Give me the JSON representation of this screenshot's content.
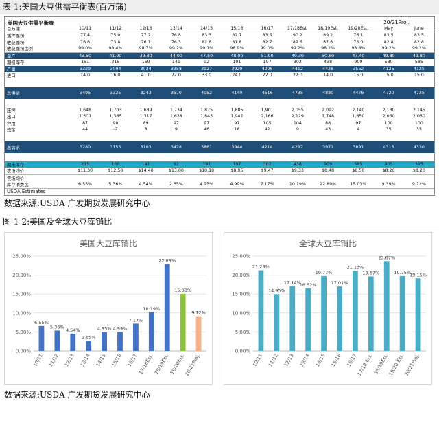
{
  "table_caption": "表 1:美国大豆供需平衡表(百万蒲)",
  "table": {
    "title": "美国大豆供需平衡表",
    "unit": "百万蒲",
    "proj_label": "20/21Proj.",
    "columns": [
      "10/11",
      "11/12",
      "12/13",
      "13/14",
      "14/15",
      "15/16",
      "16/17",
      "17/18Est.",
      "18/19Est.",
      "19/20Est.",
      "May",
      "June"
    ],
    "rows": [
      {
        "label": "播种面积",
        "style": "",
        "values": [
          "77.4",
          "75.0",
          "77.2",
          "76.8",
          "83.3",
          "82.7",
          "83.5",
          "90.2",
          "89.2",
          "76.1",
          "83.5",
          "83.5"
        ]
      },
      {
        "label": "收获面积",
        "style": "",
        "values": [
          "76.6",
          "73.8",
          "76.1",
          "76.3",
          "82.6",
          "81.8",
          "82.7",
          "89.5",
          "87.6",
          "75.0",
          "82.8",
          "82.8"
        ]
      },
      {
        "label": "收获面积比例",
        "style": "line",
        "values": [
          "99.0%",
          "98.4%",
          "98.7%",
          "99.2%",
          "99.1%",
          "98.9%",
          "99.0%",
          "99.2%",
          "98.2%",
          "98.6%",
          "99.2%",
          "99.2%"
        ]
      },
      {
        "label": "单产",
        "style": "blue",
        "values": [
          "43.50",
          "41.90",
          "39.80",
          "44.00",
          "47.50",
          "48.00",
          "51.90",
          "49.30",
          "50.60",
          "47.40",
          "49.80",
          "49.80"
        ]
      },
      {
        "label": "期初库存",
        "style": "",
        "values": [
          "151",
          "215",
          "169",
          "141",
          "92",
          "191",
          "197",
          "302",
          "438",
          "909",
          "580",
          "585"
        ]
      },
      {
        "label": "产量",
        "style": "blue",
        "values": [
          "3329",
          "3094",
          "3034",
          "3358",
          "3927",
          "3929",
          "4296",
          "4412",
          "4428",
          "3552",
          "4125",
          "4125"
        ]
      },
      {
        "label": "进口",
        "style": "",
        "values": [
          "14.0",
          "16.0",
          "41.0",
          "72.0",
          "33.0",
          "24.0",
          "22.0",
          "22.0",
          "14.0",
          "15.0",
          "15.0",
          "15.0"
        ]
      },
      {
        "label": "",
        "style": "tall2",
        "values": [
          "",
          "",
          "",
          "",
          "",
          "",
          "",
          "",
          "",
          "",
          "",
          ""
        ]
      },
      {
        "label": "总供给",
        "style": "blue tall",
        "values": [
          "3495",
          "3325",
          "3243",
          "3570",
          "4052",
          "4140",
          "4516",
          "4735",
          "4880",
          "4476",
          "4720",
          "4725"
        ]
      },
      {
        "label": "",
        "style": "tall2",
        "values": [
          "",
          "",
          "",
          "",
          "",
          "",
          "",
          "",
          "",
          "",
          "",
          ""
        ]
      },
      {
        "label": "压榨",
        "style": "",
        "values": [
          "1,648",
          "1,703",
          "1,689",
          "1,734",
          "1,875",
          "1,886",
          "1,901",
          "2,055",
          "2,092",
          "2,140",
          "2,130",
          "2,145"
        ]
      },
      {
        "label": "出口",
        "style": "",
        "values": [
          "1,501",
          "1,365",
          "1,317",
          "1,638",
          "1,843",
          "1,942",
          "2,166",
          "2,129",
          "1,748",
          "1,650",
          "2,050",
          "2,050"
        ]
      },
      {
        "label": "种用",
        "style": "",
        "values": [
          "87",
          "90",
          "89",
          "97",
          "97",
          "97",
          "105",
          "104",
          "88",
          "97",
          "100",
          "100"
        ]
      },
      {
        "label": "残余",
        "style": "",
        "values": [
          "44",
          "-2",
          "8",
          "9",
          "46",
          "18",
          "42",
          "9",
          "43",
          "4",
          "35",
          "35"
        ]
      },
      {
        "label": "",
        "style": "tall2",
        "values": [
          "",
          "",
          "",
          "",
          "",
          "",
          "",
          "",
          "",
          "",
          "",
          ""
        ]
      },
      {
        "label": "总需求",
        "style": "blue tall",
        "values": [
          "3280",
          "3155",
          "3103",
          "3478",
          "3861",
          "3944",
          "4214",
          "4297",
          "3971",
          "3891",
          "4315",
          "4330"
        ]
      },
      {
        "label": "",
        "style": "tall2",
        "values": [
          "",
          "",
          "",
          "",
          "",
          "",
          "",
          "",
          "",
          "",
          "",
          ""
        ]
      },
      {
        "label": "期末库存",
        "style": "cyan",
        "values": [
          "215",
          "169",
          "141",
          "92",
          "191",
          "197",
          "302",
          "438",
          "909",
          "585",
          "405",
          "395"
        ]
      },
      {
        "label": "农场均价",
        "style": "line",
        "values": [
          "$11.30",
          "$12.50",
          "$14.40",
          "$13.00",
          "$10.10",
          "$8.95",
          "$9.47",
          "$9.33",
          "$8.48",
          "$8.50",
          "$8.20",
          "$8.20"
        ]
      },
      {
        "label": "农场均价",
        "style": "",
        "values": [
          "",
          "",
          "",
          "",
          "",
          "",
          "",
          "",
          "",
          "",
          "",
          ""
        ]
      },
      {
        "label": "库存消费比",
        "style": "line",
        "values": [
          "6.55%",
          "5.36%",
          "4.54%",
          "2.65%",
          "4.95%",
          "4.99%",
          "7.17%",
          "10.19%",
          "22.89%",
          "15.03%",
          "9.39%",
          "9.12%"
        ]
      }
    ],
    "note": "USDA Estimates"
  },
  "source1": "数据来源:USDA 广发期货发展研究中心",
  "figure_caption": "图 1-2:美国及全球大豆库销比",
  "source2": "数据来源:USDA 广发期货发展研究中心",
  "chart_data": [
    {
      "type": "bar",
      "title": "美国大豆库销比",
      "categories": [
        "10/11",
        "11/12",
        "12/13",
        "13/14",
        "14/15",
        "15/16",
        "16/17",
        "17/18Est.",
        "18/19Est.",
        "19/20Est.",
        "20/21Proj."
      ],
      "values": [
        6.55,
        5.36,
        4.54,
        2.65,
        4.95,
        4.99,
        7.17,
        10.19,
        22.89,
        15.03,
        9.12
      ],
      "labels": [
        "6.55%",
        "5.36%",
        "4.54%",
        "2.65%",
        "4.95%",
        "4.99%",
        "7.17%",
        "10.19%",
        "22.89%",
        "15.03%",
        "9.12%"
      ],
      "colors": [
        "#4472c4",
        "#4472c4",
        "#4472c4",
        "#4472c4",
        "#4472c4",
        "#4472c4",
        "#4472c4",
        "#4472c4",
        "#4472c4",
        "#8fbf3f",
        "#f4b183"
      ],
      "ylim": [
        0,
        25
      ],
      "yticks": [
        "0.00%",
        "5.00%",
        "10.00%",
        "15.00%",
        "20.00%",
        "25.00%"
      ],
      "grid": true
    },
    {
      "type": "bar",
      "title": "全球大豆库销比",
      "categories": [
        "10/11",
        "11/12",
        "12/13",
        "13/14",
        "14/15",
        "15/16",
        "16/17",
        "17/18 Est.",
        "18/19Est.",
        "19/20 Est.",
        "20/21Proj."
      ],
      "values": [
        21.28,
        14.95,
        17.14,
        16.52,
        19.77,
        17.01,
        21.13,
        19.67,
        23.67,
        19.75,
        19.15
      ],
      "labels": [
        "21.28%",
        "14.95%",
        "17.14%",
        "16.52%",
        "19.77%",
        "17.01%",
        "21.13%",
        "19.67%",
        "23.67%",
        "19.75%",
        "19.15%"
      ],
      "colors": [
        "#4bacc6",
        "#4bacc6",
        "#4bacc6",
        "#4bacc6",
        "#4bacc6",
        "#4bacc6",
        "#4bacc6",
        "#4bacc6",
        "#4bacc6",
        "#4bacc6",
        "#4bacc6"
      ],
      "ylim": [
        0,
        25
      ],
      "yticks": [
        "0.00%",
        "5.00%",
        "10.00%",
        "15.00%",
        "20.00%",
        "25.00%"
      ],
      "grid": true
    }
  ]
}
